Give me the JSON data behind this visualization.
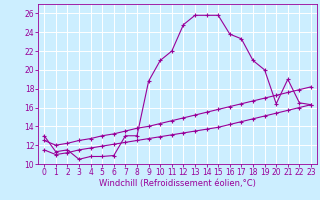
{
  "xlabel": "Windchill (Refroidissement éolien,°C)",
  "bg_color": "#cceeff",
  "line_color": "#990099",
  "grid_color": "#ffffff",
  "xlim": [
    -0.5,
    23.5
  ],
  "ylim": [
    10,
    27
  ],
  "xticks": [
    0,
    1,
    2,
    3,
    4,
    5,
    6,
    7,
    8,
    9,
    10,
    11,
    12,
    13,
    14,
    15,
    16,
    17,
    18,
    19,
    20,
    21,
    22,
    23
  ],
  "yticks": [
    10,
    12,
    14,
    16,
    18,
    20,
    22,
    24,
    26
  ],
  "line1_x": [
    0,
    1,
    2,
    3,
    4,
    5,
    6,
    7,
    8,
    9,
    10,
    11,
    12,
    13,
    14,
    15,
    16,
    17,
    18,
    19,
    20,
    21,
    22,
    23
  ],
  "line1_y": [
    13.0,
    11.3,
    11.5,
    10.5,
    10.8,
    10.8,
    10.9,
    13.0,
    13.0,
    18.8,
    21.0,
    22.0,
    24.8,
    25.8,
    25.8,
    25.8,
    23.8,
    23.3,
    21.0,
    20.0,
    16.4,
    19.0,
    16.5,
    16.3
  ],
  "line2_x": [
    0,
    1,
    2,
    3,
    4,
    5,
    6,
    7,
    8,
    9,
    10,
    11,
    12,
    13,
    14,
    15,
    16,
    17,
    18,
    19,
    20,
    21,
    22,
    23
  ],
  "line2_y": [
    12.5,
    12.0,
    12.2,
    12.5,
    12.7,
    13.0,
    13.2,
    13.5,
    13.8,
    14.0,
    14.3,
    14.6,
    14.9,
    15.2,
    15.5,
    15.8,
    16.1,
    16.4,
    16.7,
    17.0,
    17.3,
    17.6,
    17.9,
    18.2
  ],
  "line3_x": [
    0,
    1,
    2,
    3,
    4,
    5,
    6,
    7,
    8,
    9,
    10,
    11,
    12,
    13,
    14,
    15,
    16,
    17,
    18,
    19,
    20,
    21,
    22,
    23
  ],
  "line3_y": [
    11.5,
    11.0,
    11.2,
    11.5,
    11.7,
    11.9,
    12.1,
    12.3,
    12.5,
    12.7,
    12.9,
    13.1,
    13.3,
    13.5,
    13.7,
    13.9,
    14.2,
    14.5,
    14.8,
    15.1,
    15.4,
    15.7,
    16.0,
    16.3
  ],
  "xlabel_fontsize": 6,
  "tick_fontsize": 5.5
}
